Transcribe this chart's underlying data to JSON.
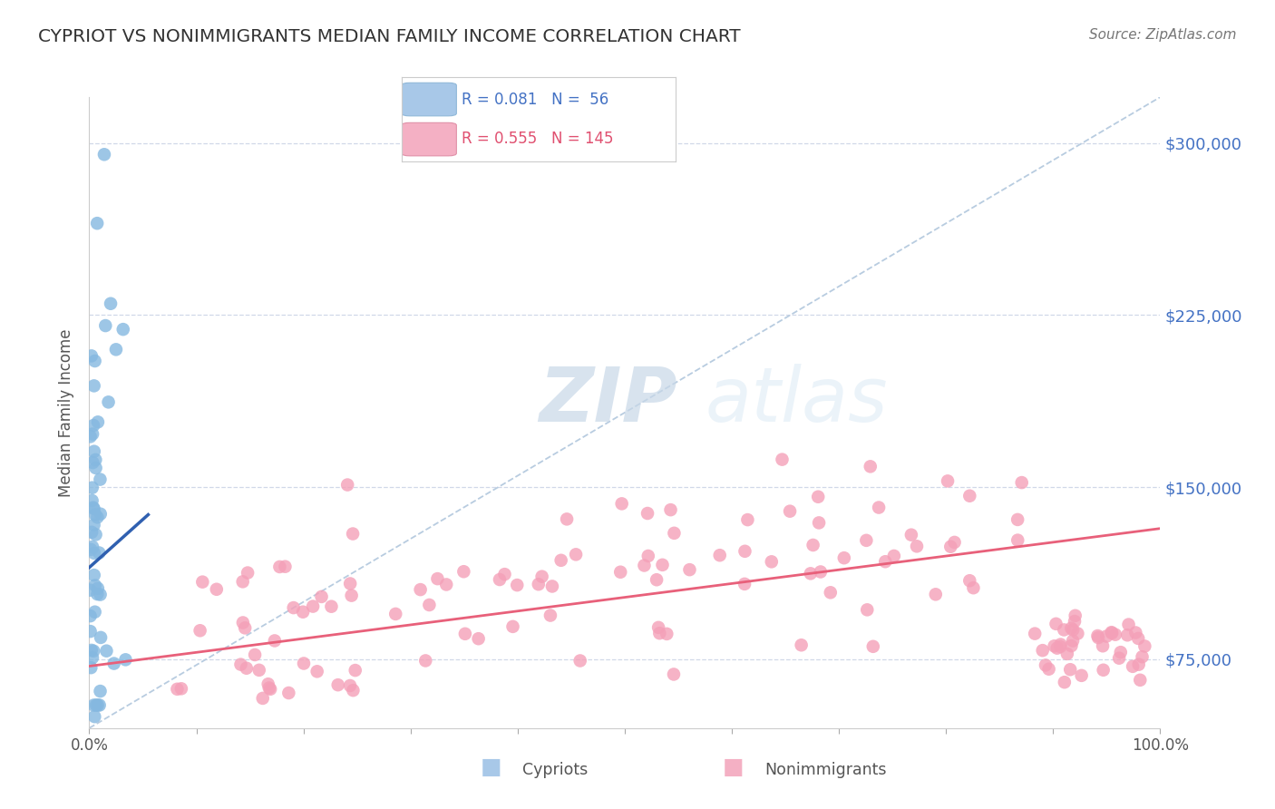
{
  "title": "CYPRIOT VS NONIMMIGRANTS MEDIAN FAMILY INCOME CORRELATION CHART",
  "source": "Source: ZipAtlas.com",
  "ylabel": "Median Family Income",
  "xlim": [
    0.0,
    1.0
  ],
  "ylim": [
    45000,
    320000
  ],
  "yticks": [
    75000,
    150000,
    225000,
    300000
  ],
  "ytick_labels": [
    "$75,000",
    "$150,000",
    "$225,000",
    "$300,000"
  ],
  "xticks": [
    0.0,
    0.1,
    0.2,
    0.3,
    0.4,
    0.5,
    0.6,
    0.7,
    0.8,
    0.9,
    1.0
  ],
  "cypriot_color": "#85b8e0",
  "nonimmigrant_color": "#f4a0b8",
  "cypriot_line_color": "#3060b0",
  "nonimmigrant_line_color": "#e8607a",
  "diagonal_color": "#b8cce0",
  "background_color": "#ffffff",
  "grid_color": "#d0d8e8",
  "R_cypriot": 0.081,
  "N_cypriot": 56,
  "R_nonimmigrant": 0.555,
  "N_nonimmigrant": 145,
  "legend_box_blue": "#a8c8e8",
  "legend_box_pink": "#f4b0c4",
  "legend_text_blue": "#4472c4",
  "legend_text_pink": "#e05070"
}
